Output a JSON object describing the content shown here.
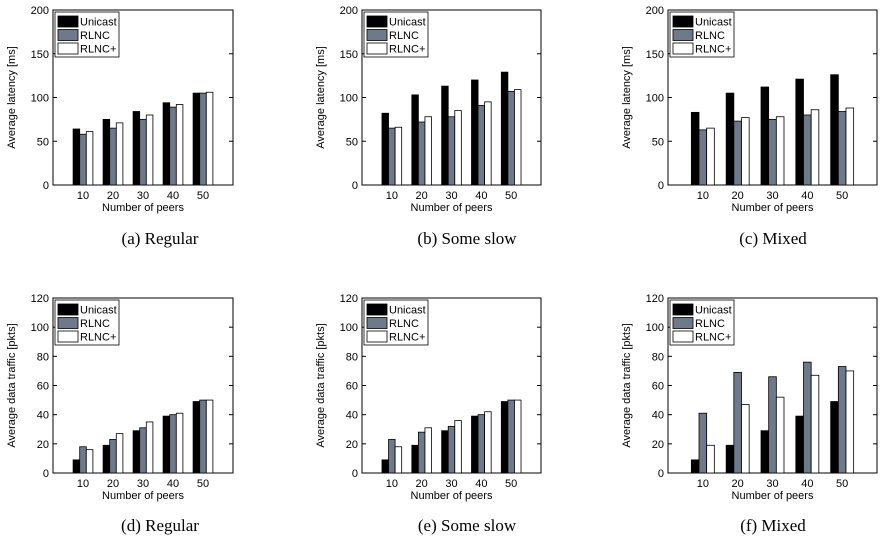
{
  "legend": [
    "Unicast",
    "RLNC",
    "RLNC+"
  ],
  "colors": {
    "Unicast": "#000000",
    "RLNC": "#6e7a8a",
    "RLNC+": "#ffffff"
  },
  "chart_data": [
    {
      "type": "bar",
      "caption": "(a) Regular",
      "xlabel": "Number of peers",
      "ylabel": "Average latency [ms]",
      "ylim": [
        0,
        200
      ],
      "yticks": [
        0,
        50,
        100,
        150,
        200
      ],
      "categories": [
        "10",
        "20",
        "30",
        "40",
        "50"
      ],
      "legend_position": "top-left",
      "series": [
        {
          "name": "Unicast",
          "values": [
            64,
            75,
            84,
            94,
            105
          ]
        },
        {
          "name": "RLNC",
          "values": [
            58,
            65,
            75,
            89,
            105
          ]
        },
        {
          "name": "RLNC+",
          "values": [
            61,
            71,
            80,
            92,
            106
          ]
        }
      ]
    },
    {
      "type": "bar",
      "caption": "(b) Some slow",
      "xlabel": "Number of peers",
      "ylabel": "Average latency [ms]",
      "ylim": [
        0,
        200
      ],
      "yticks": [
        0,
        50,
        100,
        150,
        200
      ],
      "categories": [
        "10",
        "20",
        "30",
        "40",
        "50"
      ],
      "legend_position": "top-left",
      "series": [
        {
          "name": "Unicast",
          "values": [
            82,
            103,
            113,
            120,
            129
          ]
        },
        {
          "name": "RLNC",
          "values": [
            65,
            72,
            78,
            91,
            107
          ]
        },
        {
          "name": "RLNC+",
          "values": [
            66,
            78,
            85,
            95,
            109
          ]
        }
      ]
    },
    {
      "type": "bar",
      "caption": "(c) Mixed",
      "xlabel": "Number of peers",
      "ylabel": "Average latency [ms]",
      "ylim": [
        0,
        200
      ],
      "yticks": [
        0,
        50,
        100,
        150,
        200
      ],
      "categories": [
        "10",
        "20",
        "30",
        "40",
        "50"
      ],
      "legend_position": "top-left",
      "series": [
        {
          "name": "Unicast",
          "values": [
            83,
            105,
            112,
            121,
            126
          ]
        },
        {
          "name": "RLNC",
          "values": [
            63,
            73,
            75,
            80,
            84
          ]
        },
        {
          "name": "RLNC+",
          "values": [
            65,
            77,
            78,
            86,
            88
          ]
        }
      ]
    },
    {
      "type": "bar",
      "caption": "(d) Regular",
      "xlabel": "Number of peers",
      "ylabel": "Average data traffic [pkts]",
      "ylim": [
        0,
        120
      ],
      "yticks": [
        0,
        20,
        40,
        60,
        80,
        100,
        120
      ],
      "categories": [
        "10",
        "20",
        "30",
        "40",
        "50"
      ],
      "legend_position": "top-left",
      "series": [
        {
          "name": "Unicast",
          "values": [
            9,
            19,
            29,
            39,
            49
          ]
        },
        {
          "name": "RLNC",
          "values": [
            18,
            23,
            31,
            40,
            50
          ]
        },
        {
          "name": "RLNC+",
          "values": [
            16,
            27,
            35,
            41,
            50
          ]
        }
      ]
    },
    {
      "type": "bar",
      "caption": "(e) Some slow",
      "xlabel": "Number of peers",
      "ylabel": "Average data traffic [pkts]",
      "ylim": [
        0,
        120
      ],
      "yticks": [
        0,
        20,
        40,
        60,
        80,
        100,
        120
      ],
      "categories": [
        "10",
        "20",
        "30",
        "40",
        "50"
      ],
      "legend_position": "top-left",
      "series": [
        {
          "name": "Unicast",
          "values": [
            9,
            19,
            29,
            39,
            49
          ]
        },
        {
          "name": "RLNC",
          "values": [
            23,
            28,
            32,
            40,
            50
          ]
        },
        {
          "name": "RLNC+",
          "values": [
            18,
            31,
            36,
            42,
            50
          ]
        }
      ]
    },
    {
      "type": "bar",
      "caption": "(f) Mixed",
      "xlabel": "Number of peers",
      "ylabel": "Average data traffic [pkts]",
      "ylim": [
        0,
        120
      ],
      "yticks": [
        0,
        20,
        40,
        60,
        80,
        100,
        120
      ],
      "categories": [
        "10",
        "20",
        "30",
        "40",
        "50"
      ],
      "legend_position": "top-left",
      "series": [
        {
          "name": "Unicast",
          "values": [
            9,
            19,
            29,
            39,
            49
          ]
        },
        {
          "name": "RLNC",
          "values": [
            41,
            69,
            66,
            76,
            73
          ]
        },
        {
          "name": "RLNC+",
          "values": [
            19,
            47,
            52,
            67,
            70
          ]
        }
      ]
    }
  ]
}
